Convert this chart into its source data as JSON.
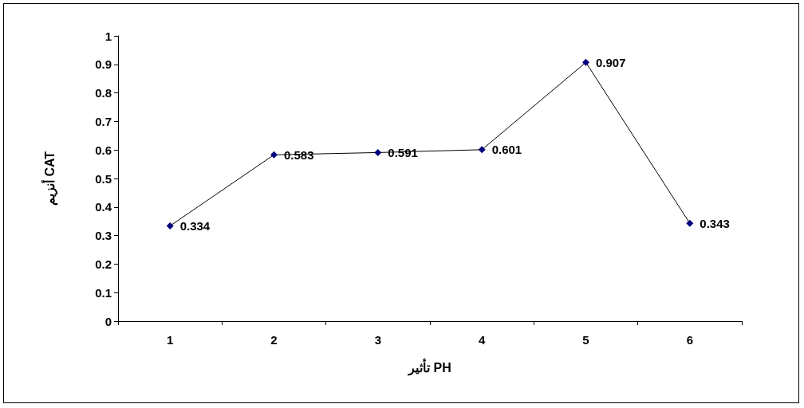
{
  "chart_data": {
    "type": "line",
    "xlabel": "تأثير PH",
    "ylabel": "أنزيم CAT",
    "categories": [
      "1",
      "2",
      "3",
      "4",
      "5",
      "6"
    ],
    "series": [
      {
        "color": "#000080",
        "values": [
          0.334,
          0.583,
          0.591,
          0.601,
          0.907,
          0.343
        ]
      }
    ],
    "ylim": [
      0,
      1
    ],
    "yticks": [
      0,
      0.1,
      0.2,
      0.3,
      0.4,
      0.5,
      0.6,
      0.7,
      0.8,
      0.9,
      1
    ],
    "grid": false,
    "marker": "diamond",
    "line_style": "solid",
    "data_labels": true
  }
}
